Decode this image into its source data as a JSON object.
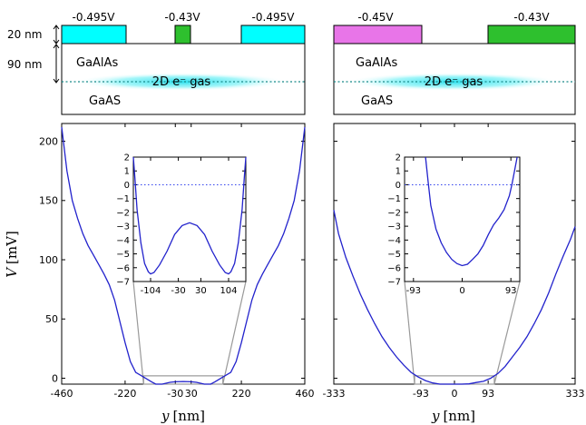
{
  "figure": {
    "schematic_left": {
      "gates": [
        {
          "voltage": "-0.495V",
          "color": "#00ffff"
        },
        {
          "voltage": "-0.43V",
          "color": "#2ec02e"
        },
        {
          "voltage": "-0.495V",
          "color": "#00ffff"
        }
      ],
      "layer_thickness_gate": "20 nm",
      "layer_thickness_barrier": "90 nm",
      "barrier_material": "GaAlAs",
      "substrate_material": "GaAS",
      "gas_label": "2D e⁻ gas"
    },
    "schematic_right": {
      "gates": [
        {
          "voltage": "-0.45V",
          "color": "#e875e8"
        },
        {
          "voltage": "-0.43V",
          "color": "#2ec02e"
        }
      ],
      "barrier_material": "GaAlAs",
      "substrate_material": "GaAS",
      "gas_label": "2D e⁻ gas"
    }
  },
  "chart_data": [
    {
      "type": "line",
      "panel": "left-main",
      "xlabel_var": "y",
      "xlabel_unit": "[nm]",
      "ylabel_var": "V",
      "ylabel_unit": "[mV]",
      "xlim": [
        -460,
        460
      ],
      "ylim": [
        -5,
        215
      ],
      "xticks": [
        -460,
        -220,
        -30,
        30,
        220,
        460
      ],
      "xtick_labels": [
        "-460",
        "-220",
        "-30",
        "30",
        "220",
        "460"
      ],
      "yticks": [
        0,
        50,
        100,
        150,
        200
      ],
      "ytick_labels": [
        "0",
        "50",
        "100",
        "150",
        "200"
      ],
      "line_color": "#2222cc",
      "series": [
        {
          "x": [
            -460,
            -440,
            -420,
            -400,
            -380,
            -360,
            -340,
            -320,
            -300,
            -280,
            -260,
            -240,
            -220,
            -200,
            -180,
            -150,
            -120,
            -104,
            -80,
            -50,
            -30,
            0,
            30,
            50,
            80,
            104,
            120,
            150,
            180,
            200,
            220,
            240,
            260,
            280,
            300,
            320,
            340,
            360,
            380,
            400,
            420,
            440,
            460
          ],
          "y": [
            212,
            175,
            150,
            135,
            122,
            112,
            104,
            96,
            88,
            79,
            66,
            48,
            30,
            14,
            5,
            1,
            -3,
            -6.5,
            -5,
            -3.5,
            -3,
            -2.8,
            -3,
            -3.5,
            -5,
            -6.5,
            -3,
            1,
            5,
            14,
            30,
            48,
            66,
            79,
            88,
            96,
            104,
            112,
            122,
            135,
            150,
            175,
            212
          ]
        }
      ]
    },
    {
      "type": "line",
      "panel": "left-inset",
      "xlim": [
        -150,
        150
      ],
      "ylim": [
        -7,
        2
      ],
      "xticks": [
        -104,
        -30,
        30,
        104
      ],
      "xtick_labels": [
        "-104",
        "-30",
        "30",
        "104"
      ],
      "yticks": [
        2,
        1,
        0,
        -1,
        -2,
        -3,
        -4,
        -5,
        -6,
        -7
      ],
      "ytick_labels": [
        "2",
        "1",
        "0",
        "−1",
        "−2",
        "−3",
        "−4",
        "−5",
        "−6",
        "−7"
      ],
      "reference_line_y": 0,
      "series": [
        {
          "x": [
            -150,
            -146,
            -140,
            -130,
            -120,
            -110,
            -104,
            -95,
            -80,
            -60,
            -40,
            -20,
            0,
            20,
            40,
            60,
            80,
            95,
            104,
            110,
            120,
            130,
            140,
            146,
            150
          ],
          "y": [
            2,
            0.5,
            -1.8,
            -4.2,
            -5.7,
            -6.3,
            -6.45,
            -6.35,
            -5.8,
            -4.8,
            -3.6,
            -2.95,
            -2.75,
            -2.95,
            -3.6,
            -4.8,
            -5.8,
            -6.35,
            -6.45,
            -6.3,
            -5.7,
            -4.2,
            -1.8,
            0.5,
            2
          ]
        }
      ]
    },
    {
      "type": "line",
      "panel": "right-main",
      "xlabel_var": "y",
      "xlabel_unit": "[nm]",
      "xlim": [
        -333,
        333
      ],
      "ylim": [
        -5,
        215
      ],
      "xticks": [
        -333,
        -93,
        0,
        93,
        333
      ],
      "xtick_labels": [
        "-333",
        "-93",
        "0",
        "93",
        "333"
      ],
      "line_color": "#2222cc",
      "series": [
        {
          "x": [
            -333,
            -320,
            -300,
            -280,
            -260,
            -240,
            -220,
            -200,
            -180,
            -160,
            -140,
            -120,
            -100,
            -80,
            -60,
            -40,
            -20,
            0,
            20,
            40,
            60,
            80,
            100,
            120,
            140,
            160,
            180,
            200,
            220,
            240,
            260,
            280,
            300,
            320,
            333
          ],
          "y": [
            142,
            122,
            102,
            86,
            71,
            58,
            46,
            35,
            26,
            18,
            11,
            5,
            1,
            -2,
            -4,
            -5,
            -5.5,
            -5.8,
            -5.5,
            -4.8,
            -3.6,
            -2.6,
            0,
            4,
            10,
            18,
            26,
            35,
            46,
            58,
            72,
            88,
            103,
            117,
            128
          ]
        }
      ]
    },
    {
      "type": "line",
      "panel": "right-inset",
      "xlim": [
        -110,
        110
      ],
      "ylim": [
        -7,
        2
      ],
      "xticks": [
        -93,
        0,
        93
      ],
      "xtick_labels": [
        "-93",
        "0",
        "93"
      ],
      "yticks": [
        2,
        1,
        0,
        -1,
        -2,
        -3,
        -4,
        -5,
        -6,
        -7
      ],
      "ytick_labels": [
        "2",
        "1",
        "0",
        "−1",
        "−2",
        "−3",
        "−4",
        "−5",
        "−6",
        "−7"
      ],
      "reference_line_y": 0,
      "series": [
        {
          "x": [
            -70,
            -65,
            -60,
            -50,
            -40,
            -30,
            -20,
            -10,
            0,
            10,
            20,
            30,
            40,
            50,
            60,
            70,
            80,
            90,
            95,
            100,
            105
          ],
          "y": [
            2,
            0.2,
            -1.5,
            -3.2,
            -4.2,
            -4.9,
            -5.4,
            -5.7,
            -5.85,
            -5.75,
            -5.4,
            -5.0,
            -4.4,
            -3.6,
            -2.9,
            -2.4,
            -1.8,
            -0.8,
            0,
            1,
            2
          ]
        }
      ]
    }
  ]
}
